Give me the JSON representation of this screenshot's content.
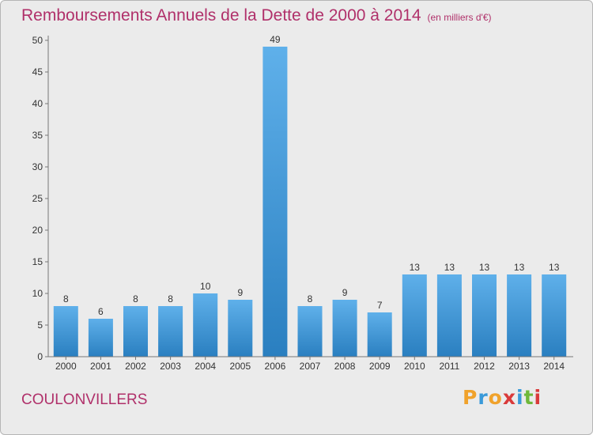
{
  "title": "Remboursements Annuels de la Dette de 2000 à 2014",
  "unit": "(en milliers d'€)",
  "commune": "COULONVILLERS",
  "brand": {
    "letters": [
      "P",
      "r",
      "o",
      "x",
      "i",
      "t",
      "i"
    ],
    "colors": [
      "#f0a22b",
      "#3a9ad9",
      "#f0a22b",
      "#d93a3a",
      "#3a9ad9",
      "#6fb83a",
      "#d93a3a"
    ]
  },
  "colors": {
    "bar_top": "#5fb0ea",
    "bar_bottom": "#2a7fc0",
    "title": "#b0306a",
    "background": "#ebebeb"
  },
  "chart_data": {
    "type": "bar",
    "categories": [
      "2000",
      "2001",
      "2002",
      "2003",
      "2004",
      "2005",
      "2006",
      "2007",
      "2008",
      "2009",
      "2010",
      "2011",
      "2012",
      "2013",
      "2014"
    ],
    "values": [
      8,
      6,
      8,
      8,
      10,
      9,
      49,
      8,
      9,
      7,
      13,
      13,
      13,
      13,
      13
    ],
    "ylim": [
      0,
      50
    ],
    "yticks": [
      0,
      5,
      10,
      15,
      20,
      25,
      30,
      35,
      40,
      45,
      50
    ],
    "grid": false,
    "data_labels": true
  }
}
